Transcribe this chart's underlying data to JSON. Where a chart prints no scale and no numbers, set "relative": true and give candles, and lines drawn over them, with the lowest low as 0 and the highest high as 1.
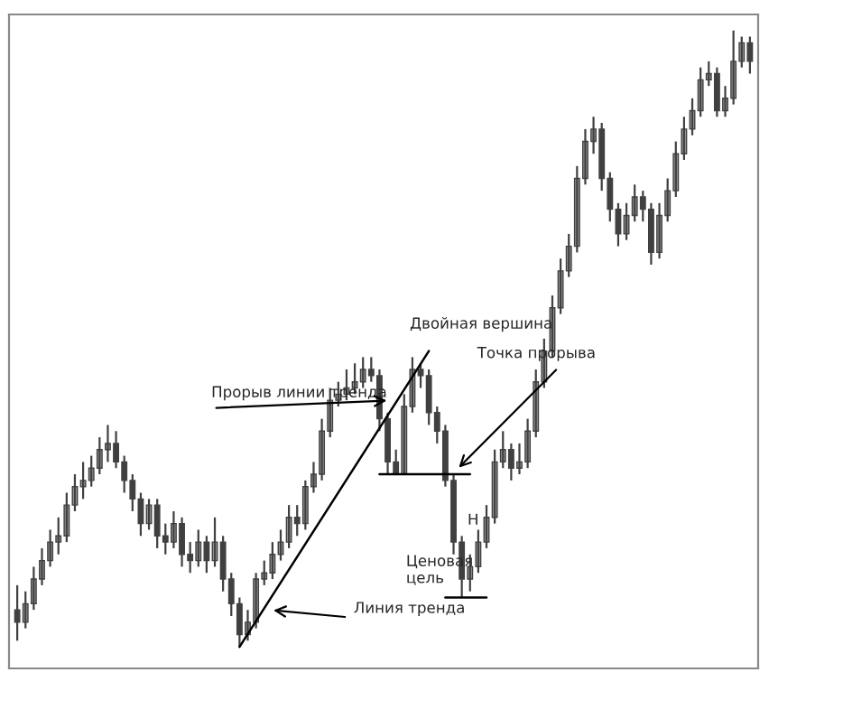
{
  "chart_data": {
    "type": "candlestick",
    "relative": true,
    "tick_labels": false,
    "categories": [
      null,
      null,
      null,
      null,
      null,
      null,
      null,
      null,
      null,
      null,
      null,
      null,
      null,
      null,
      null,
      null,
      null,
      null,
      null,
      null,
      null,
      null,
      null,
      null,
      null,
      null,
      null,
      null,
      null,
      null,
      null,
      null,
      null,
      null,
      null,
      null,
      null,
      null,
      null,
      null,
      null,
      null,
      null,
      null,
      null,
      null,
      null,
      null,
      null,
      null,
      null,
      null,
      null,
      null,
      null,
      null,
      null,
      null,
      null,
      null,
      null,
      null,
      null,
      null,
      null,
      null,
      null,
      null,
      null,
      null,
      null,
      null,
      null,
      null,
      null,
      null,
      null,
      null,
      null,
      null,
      null,
      null,
      null,
      null,
      null,
      null,
      null,
      null,
      null,
      null
    ],
    "color": "#404040",
    "ohlc": [
      [
        0.06,
        0.1,
        0.01,
        0.04
      ],
      [
        0.04,
        0.09,
        0.03,
        0.07
      ],
      [
        0.07,
        0.13,
        0.06,
        0.11
      ],
      [
        0.11,
        0.16,
        0.1,
        0.14
      ],
      [
        0.14,
        0.19,
        0.13,
        0.17
      ],
      [
        0.17,
        0.21,
        0.15,
        0.18
      ],
      [
        0.18,
        0.25,
        0.17,
        0.23
      ],
      [
        0.23,
        0.28,
        0.22,
        0.26
      ],
      [
        0.26,
        0.3,
        0.24,
        0.27
      ],
      [
        0.27,
        0.31,
        0.26,
        0.29
      ],
      [
        0.29,
        0.34,
        0.28,
        0.32
      ],
      [
        0.32,
        0.36,
        0.3,
        0.33
      ],
      [
        0.33,
        0.35,
        0.29,
        0.3
      ],
      [
        0.3,
        0.31,
        0.25,
        0.27
      ],
      [
        0.27,
        0.28,
        0.22,
        0.24
      ],
      [
        0.24,
        0.25,
        0.18,
        0.2
      ],
      [
        0.2,
        0.24,
        0.19,
        0.23
      ],
      [
        0.23,
        0.24,
        0.16,
        0.18
      ],
      [
        0.18,
        0.2,
        0.15,
        0.17
      ],
      [
        0.17,
        0.22,
        0.16,
        0.2
      ],
      [
        0.2,
        0.21,
        0.13,
        0.15
      ],
      [
        0.15,
        0.17,
        0.12,
        0.14
      ],
      [
        0.14,
        0.19,
        0.13,
        0.17
      ],
      [
        0.17,
        0.18,
        0.12,
        0.14
      ],
      [
        0.14,
        0.21,
        0.13,
        0.17
      ],
      [
        0.17,
        0.18,
        0.09,
        0.11
      ],
      [
        0.11,
        0.12,
        0.05,
        0.07
      ],
      [
        0.07,
        0.08,
        0.0,
        0.02
      ],
      [
        0.02,
        0.06,
        0.01,
        0.04
      ],
      [
        0.04,
        0.12,
        0.03,
        0.11
      ],
      [
        0.11,
        0.14,
        0.1,
        0.12
      ],
      [
        0.12,
        0.17,
        0.11,
        0.15
      ],
      [
        0.15,
        0.19,
        0.14,
        0.17
      ],
      [
        0.17,
        0.23,
        0.16,
        0.21
      ],
      [
        0.21,
        0.23,
        0.18,
        0.2
      ],
      [
        0.2,
        0.27,
        0.19,
        0.26
      ],
      [
        0.26,
        0.3,
        0.25,
        0.28
      ],
      [
        0.28,
        0.37,
        0.27,
        0.35
      ],
      [
        0.35,
        0.42,
        0.34,
        0.4
      ],
      [
        0.4,
        0.43,
        0.39,
        0.41
      ],
      [
        0.41,
        0.45,
        0.4,
        0.42
      ],
      [
        0.42,
        0.46,
        0.41,
        0.43
      ],
      [
        0.43,
        0.47,
        0.42,
        0.45
      ],
      [
        0.45,
        0.47,
        0.43,
        0.44
      ],
      [
        0.44,
        0.45,
        0.35,
        0.37
      ],
      [
        0.37,
        0.38,
        0.28,
        0.3
      ],
      [
        0.3,
        0.32,
        0.28,
        0.28
      ],
      [
        0.28,
        0.41,
        0.28,
        0.39
      ],
      [
        0.39,
        0.47,
        0.38,
        0.45
      ],
      [
        0.45,
        0.46,
        0.42,
        0.44
      ],
      [
        0.44,
        0.45,
        0.36,
        0.38
      ],
      [
        0.38,
        0.39,
        0.33,
        0.35
      ],
      [
        0.35,
        0.36,
        0.26,
        0.27
      ],
      [
        0.27,
        0.28,
        0.15,
        0.17
      ],
      [
        0.17,
        0.18,
        0.08,
        0.11
      ],
      [
        0.11,
        0.15,
        0.09,
        0.13
      ],
      [
        0.13,
        0.19,
        0.12,
        0.17
      ],
      [
        0.17,
        0.23,
        0.16,
        0.21
      ],
      [
        0.21,
        0.32,
        0.2,
        0.3
      ],
      [
        0.3,
        0.35,
        0.29,
        0.32
      ],
      [
        0.32,
        0.33,
        0.27,
        0.29
      ],
      [
        0.29,
        0.33,
        0.28,
        0.3
      ],
      [
        0.3,
        0.37,
        0.29,
        0.35
      ],
      [
        0.35,
        0.45,
        0.34,
        0.43
      ],
      [
        0.43,
        0.5,
        0.42,
        0.48
      ],
      [
        0.48,
        0.57,
        0.47,
        0.55
      ],
      [
        0.55,
        0.63,
        0.54,
        0.61
      ],
      [
        0.61,
        0.67,
        0.6,
        0.65
      ],
      [
        0.65,
        0.78,
        0.64,
        0.76
      ],
      [
        0.76,
        0.84,
        0.75,
        0.82
      ],
      [
        0.82,
        0.86,
        0.8,
        0.84
      ],
      [
        0.84,
        0.85,
        0.74,
        0.76
      ],
      [
        0.76,
        0.77,
        0.69,
        0.71
      ],
      [
        0.71,
        0.72,
        0.65,
        0.67
      ],
      [
        0.67,
        0.72,
        0.66,
        0.7
      ],
      [
        0.7,
        0.75,
        0.69,
        0.73
      ],
      [
        0.73,
        0.74,
        0.69,
        0.71
      ],
      [
        0.71,
        0.72,
        0.62,
        0.64
      ],
      [
        0.64,
        0.72,
        0.63,
        0.7
      ],
      [
        0.7,
        0.76,
        0.69,
        0.74
      ],
      [
        0.74,
        0.82,
        0.73,
        0.8
      ],
      [
        0.8,
        0.86,
        0.79,
        0.84
      ],
      [
        0.84,
        0.89,
        0.83,
        0.87
      ],
      [
        0.87,
        0.94,
        0.86,
        0.92
      ],
      [
        0.92,
        0.95,
        0.91,
        0.93
      ],
      [
        0.93,
        0.94,
        0.86,
        0.87
      ],
      [
        0.87,
        0.91,
        0.86,
        0.89
      ],
      [
        0.89,
        1.0,
        0.88,
        0.95
      ],
      [
        0.95,
        0.99,
        0.94,
        0.98
      ],
      [
        0.98,
        0.99,
        0.93,
        0.95
      ]
    ],
    "series": [
      {
        "type": "line",
        "color": "#000000",
        "values": [
          null,
          null,
          null,
          null,
          null,
          null,
          null,
          null,
          null,
          null,
          null,
          null,
          null,
          null,
          null,
          null,
          null,
          null,
          null,
          null,
          null,
          null,
          null,
          null,
          null,
          null,
          null,
          0.0,
          null,
          null,
          null,
          null,
          null,
          null,
          null,
          null,
          null,
          null,
          null,
          null,
          null,
          null,
          null,
          null,
          null,
          null,
          null,
          null,
          null,
          null,
          0.48,
          null,
          null,
          null,
          null,
          null,
          null,
          null,
          null,
          null,
          null,
          null,
          null,
          null,
          null,
          null,
          null,
          null,
          null,
          null,
          null,
          null,
          null,
          null,
          null,
          null,
          null,
          null,
          null,
          null,
          null,
          null,
          null,
          null,
          null,
          null,
          null,
          null,
          null,
          null
        ]
      },
      {
        "type": "line",
        "color": "#000000",
        "values": [
          null,
          null,
          null,
          null,
          null,
          null,
          null,
          null,
          null,
          null,
          null,
          null,
          null,
          null,
          null,
          null,
          null,
          null,
          null,
          null,
          null,
          null,
          null,
          null,
          null,
          null,
          null,
          null,
          null,
          null,
          null,
          null,
          null,
          null,
          null,
          null,
          null,
          null,
          null,
          null,
          null,
          null,
          null,
          null,
          0.28,
          null,
          null,
          null,
          null,
          null,
          null,
          null,
          null,
          null,
          null,
          0.28,
          null,
          null,
          null,
          null,
          null,
          null,
          null,
          null,
          null,
          null,
          null,
          null,
          null,
          null,
          null,
          null,
          null,
          null,
          null,
          null,
          null,
          null,
          null,
          null,
          null,
          null,
          null,
          null,
          null,
          null,
          null,
          null,
          null,
          null
        ]
      },
      {
        "type": "line",
        "color": "#000000",
        "values": [
          null,
          null,
          null,
          null,
          null,
          null,
          null,
          null,
          null,
          null,
          null,
          null,
          null,
          null,
          null,
          null,
          null,
          null,
          null,
          null,
          null,
          null,
          null,
          null,
          null,
          null,
          null,
          null,
          null,
          null,
          null,
          null,
          null,
          null,
          null,
          null,
          null,
          null,
          null,
          null,
          null,
          null,
          null,
          null,
          null,
          null,
          null,
          null,
          null,
          null,
          null,
          null,
          0.08,
          null,
          null,
          null,
          null,
          0.08,
          null,
          null,
          null,
          null,
          null,
          null,
          null,
          null,
          null,
          null,
          null,
          null,
          null,
          null,
          null,
          null,
          null,
          null,
          null,
          null,
          null,
          null,
          null,
          null,
          null,
          null,
          null,
          null,
          null,
          null,
          null,
          null
        ]
      }
    ],
    "annotations": [
      "Двойная вершина",
      "Точка прорыва",
      "Прорыв линии тренда",
      "Ценовая\nцель",
      "Линия тренда",
      "Н"
    ]
  }
}
